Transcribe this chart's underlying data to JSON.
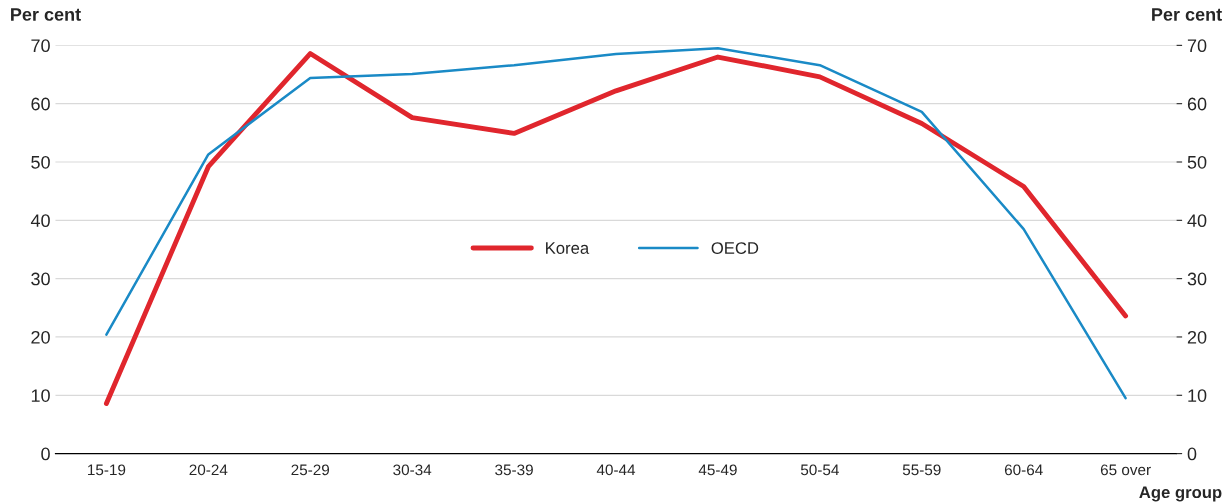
{
  "chart_data": {
    "type": "line",
    "categories": [
      "15-19",
      "20-24",
      "25-29",
      "30-34",
      "35-39",
      "40-44",
      "45-49",
      "50-54",
      "55-59",
      "60-64",
      "65 over"
    ],
    "series": [
      {
        "name": "Korea",
        "color": "#e0262d",
        "values": [
          8.6,
          49.2,
          68.6,
          57.6,
          54.9,
          62.2,
          68.0,
          64.6,
          56.6,
          45.8,
          23.6
        ]
      },
      {
        "name": "OECD",
        "color": "#1a8ac6",
        "values": [
          20.4,
          51.3,
          64.4,
          65.1,
          66.6,
          68.5,
          69.5,
          66.6,
          58.6,
          38.5,
          9.5
        ]
      }
    ],
    "xlabel": "Age group",
    "ylabel": "Per cent",
    "y2label": "Per cent",
    "ylim": [
      0,
      70
    ],
    "yticks": [
      0,
      10,
      20,
      30,
      40,
      50,
      60,
      70
    ],
    "y2lim": [
      0,
      70
    ],
    "y2ticks": [
      0,
      10,
      20,
      30,
      40,
      50,
      60,
      70
    ],
    "grid": "y",
    "legend": "center",
    "line_style": "solid"
  }
}
